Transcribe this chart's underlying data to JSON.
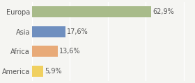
{
  "categories": [
    "Europa",
    "Asia",
    "Africa",
    "America"
  ],
  "values": [
    62.9,
    17.6,
    13.6,
    5.9
  ],
  "labels": [
    "62,9%",
    "17,6%",
    "13,6%",
    "5,9%"
  ],
  "bar_colors": [
    "#a8bb8a",
    "#6f8fbf",
    "#e8aa78",
    "#f0d060"
  ],
  "background_color": "#f5f5f2",
  "xlim": [
    0,
    85
  ],
  "bar_height": 0.55,
  "label_fontsize": 7.0,
  "tick_fontsize": 7.0,
  "grid_xticks": [
    0,
    20,
    40,
    60,
    80
  ],
  "grid_color": "#ffffff",
  "text_color": "#555555"
}
